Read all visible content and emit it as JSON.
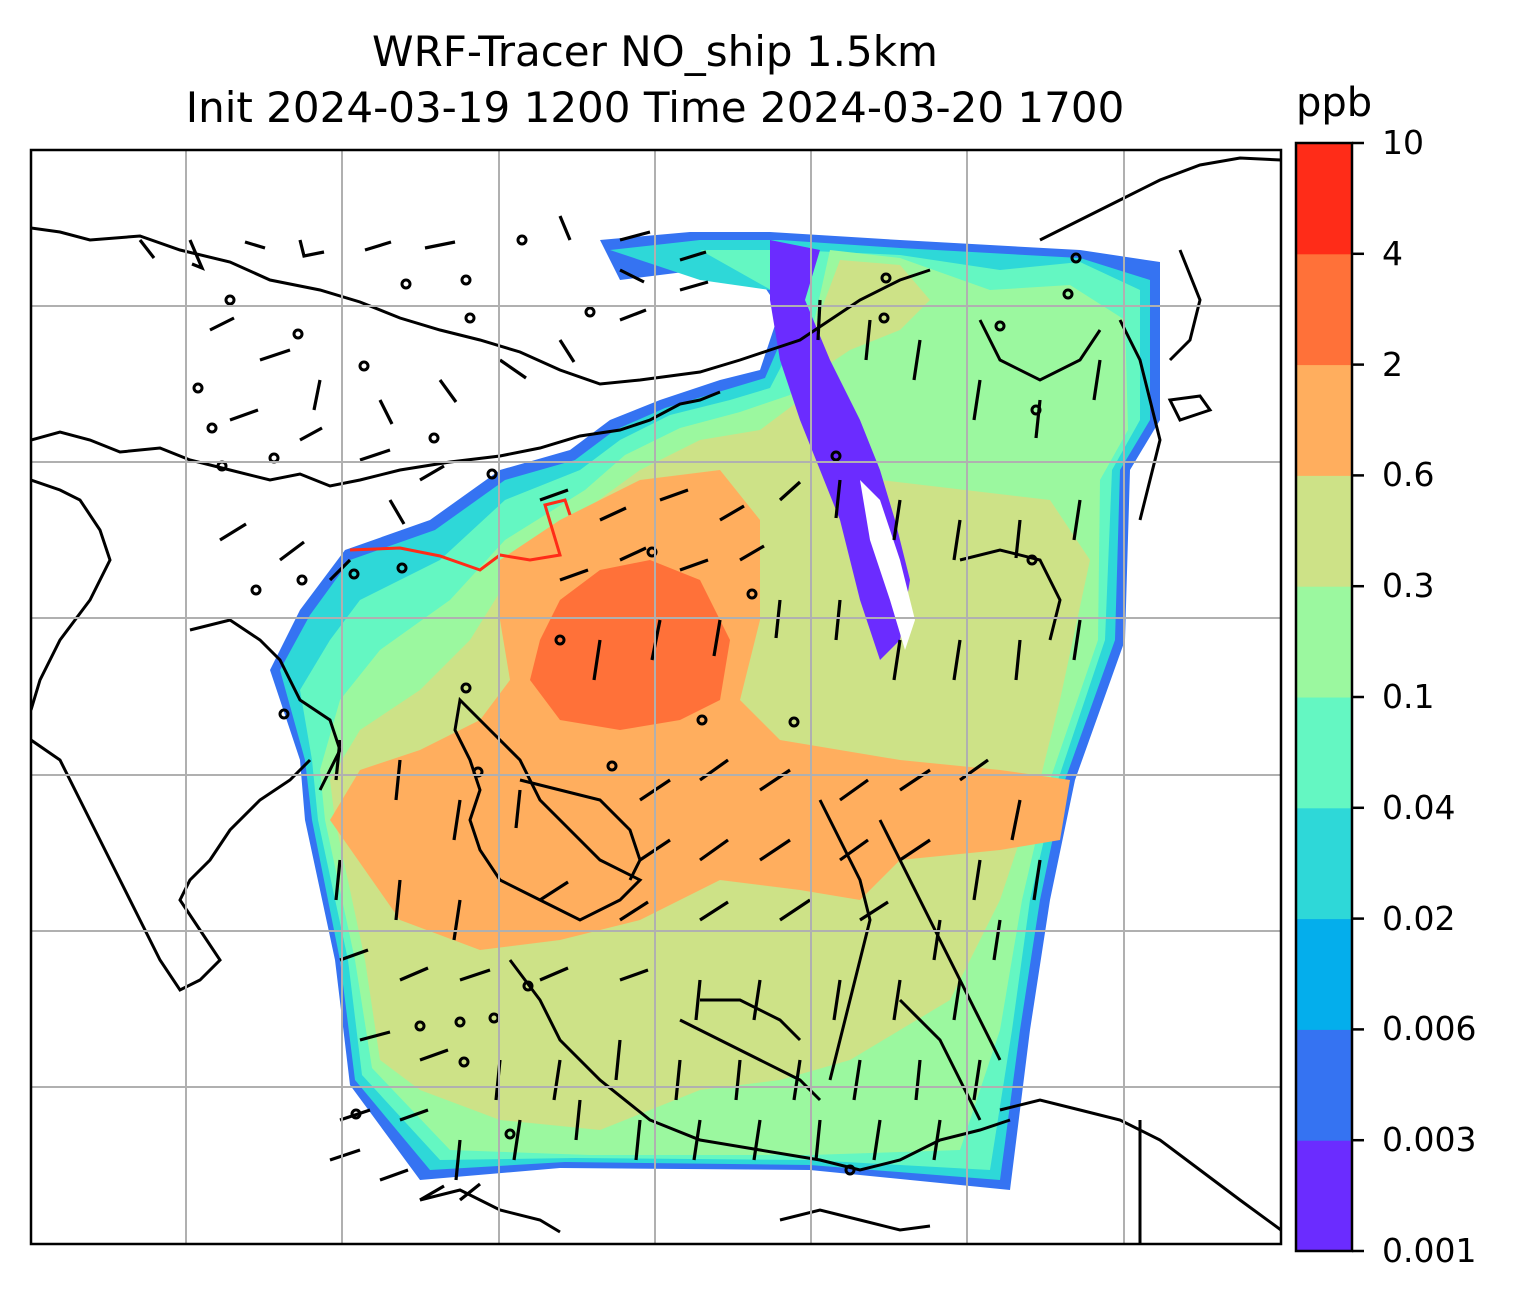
{
  "title": {
    "line1": "WRF-Tracer NO_ship 1.5km",
    "line2": "Init 2024-03-19 1200 Time 2024-03-20 1700"
  },
  "colorbar": {
    "unit": "ppb",
    "levels": [
      "0.001",
      "0.003",
      "0.006",
      "0.02",
      "0.04",
      "0.1",
      "0.3",
      "0.6",
      "2",
      "4",
      "10"
    ],
    "colors": [
      "#6b2cff",
      "#3573f2",
      "#04aeec",
      "#2ed8d8",
      "#64f7c2",
      "#9bf89f",
      "#cde287",
      "#ffae5e",
      "#ff7139",
      "#ff2c18"
    ]
  },
  "map": {
    "gridlines": true,
    "gridline_color": "#b0b0b0",
    "coastline_color": "#000000"
  }
}
